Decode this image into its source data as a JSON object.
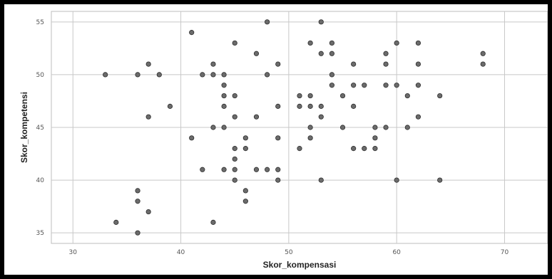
{
  "chart_data": {
    "type": "scatter",
    "xlabel": "Skor_kompensasi",
    "ylabel": "Skor_kompetensi",
    "xlim": [
      28,
      74
    ],
    "ylim": [
      34,
      56
    ],
    "xticks": [
      30,
      40,
      50,
      60,
      70
    ],
    "yticks": [
      35,
      40,
      45,
      50,
      55
    ],
    "grid": true,
    "point_color": "#6b6b6b",
    "points": [
      {
        "x": 33,
        "y": 50
      },
      {
        "x": 34,
        "y": 36
      },
      {
        "x": 36,
        "y": 50
      },
      {
        "x": 36,
        "y": 39
      },
      {
        "x": 36,
        "y": 38
      },
      {
        "x": 36,
        "y": 35
      },
      {
        "x": 37,
        "y": 51
      },
      {
        "x": 37,
        "y": 46
      },
      {
        "x": 37,
        "y": 37
      },
      {
        "x": 38,
        "y": 50
      },
      {
        "x": 39,
        "y": 47
      },
      {
        "x": 41,
        "y": 54
      },
      {
        "x": 41,
        "y": 44
      },
      {
        "x": 42,
        "y": 50
      },
      {
        "x": 42,
        "y": 41
      },
      {
        "x": 43,
        "y": 51
      },
      {
        "x": 43,
        "y": 50
      },
      {
        "x": 43,
        "y": 45
      },
      {
        "x": 43,
        "y": 36
      },
      {
        "x": 44,
        "y": 50
      },
      {
        "x": 44,
        "y": 49
      },
      {
        "x": 44,
        "y": 48
      },
      {
        "x": 44,
        "y": 47
      },
      {
        "x": 44,
        "y": 45
      },
      {
        "x": 44,
        "y": 41
      },
      {
        "x": 45,
        "y": 53
      },
      {
        "x": 45,
        "y": 48
      },
      {
        "x": 45,
        "y": 46
      },
      {
        "x": 45,
        "y": 43
      },
      {
        "x": 45,
        "y": 42
      },
      {
        "x": 45,
        "y": 41
      },
      {
        "x": 45,
        "y": 40
      },
      {
        "x": 46,
        "y": 44
      },
      {
        "x": 46,
        "y": 43
      },
      {
        "x": 46,
        "y": 39
      },
      {
        "x": 46,
        "y": 38
      },
      {
        "x": 47,
        "y": 52
      },
      {
        "x": 47,
        "y": 46
      },
      {
        "x": 47,
        "y": 41
      },
      {
        "x": 48,
        "y": 55
      },
      {
        "x": 48,
        "y": 50
      },
      {
        "x": 48,
        "y": 41
      },
      {
        "x": 49,
        "y": 51
      },
      {
        "x": 49,
        "y": 47
      },
      {
        "x": 49,
        "y": 44
      },
      {
        "x": 49,
        "y": 41
      },
      {
        "x": 49,
        "y": 40
      },
      {
        "x": 51,
        "y": 48
      },
      {
        "x": 51,
        "y": 47
      },
      {
        "x": 51,
        "y": 43
      },
      {
        "x": 52,
        "y": 53
      },
      {
        "x": 52,
        "y": 48
      },
      {
        "x": 52,
        "y": 47
      },
      {
        "x": 52,
        "y": 45
      },
      {
        "x": 52,
        "y": 44
      },
      {
        "x": 53,
        "y": 55
      },
      {
        "x": 53,
        "y": 52
      },
      {
        "x": 53,
        "y": 47
      },
      {
        "x": 53,
        "y": 46
      },
      {
        "x": 53,
        "y": 40
      },
      {
        "x": 54,
        "y": 53
      },
      {
        "x": 54,
        "y": 52
      },
      {
        "x": 54,
        "y": 50
      },
      {
        "x": 54,
        "y": 49
      },
      {
        "x": 55,
        "y": 48
      },
      {
        "x": 55,
        "y": 45
      },
      {
        "x": 56,
        "y": 51
      },
      {
        "x": 56,
        "y": 49
      },
      {
        "x": 56,
        "y": 47
      },
      {
        "x": 56,
        "y": 43
      },
      {
        "x": 57,
        "y": 49
      },
      {
        "x": 57,
        "y": 43
      },
      {
        "x": 58,
        "y": 45
      },
      {
        "x": 58,
        "y": 44
      },
      {
        "x": 58,
        "y": 43
      },
      {
        "x": 59,
        "y": 52
      },
      {
        "x": 59,
        "y": 51
      },
      {
        "x": 59,
        "y": 49
      },
      {
        "x": 59,
        "y": 45
      },
      {
        "x": 60,
        "y": 53
      },
      {
        "x": 60,
        "y": 49
      },
      {
        "x": 60,
        "y": 40
      },
      {
        "x": 61,
        "y": 48
      },
      {
        "x": 61,
        "y": 45
      },
      {
        "x": 62,
        "y": 53
      },
      {
        "x": 62,
        "y": 51
      },
      {
        "x": 62,
        "y": 49
      },
      {
        "x": 62,
        "y": 46
      },
      {
        "x": 64,
        "y": 48
      },
      {
        "x": 64,
        "y": 40
      },
      {
        "x": 68,
        "y": 52
      },
      {
        "x": 68,
        "y": 51
      }
    ]
  }
}
